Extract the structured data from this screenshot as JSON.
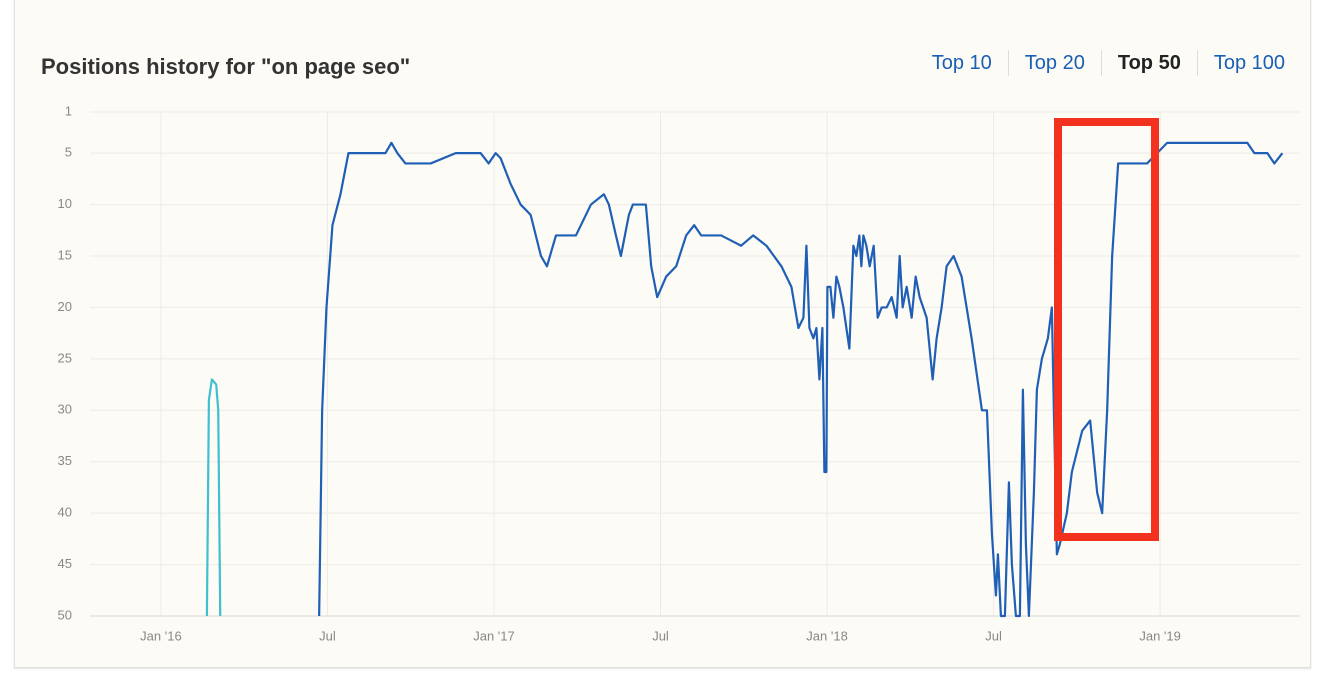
{
  "chart_data": {
    "type": "line",
    "title": "Positions history for \"on page seo\"",
    "range_buttons": [
      {
        "label": "Top 10",
        "selected": false
      },
      {
        "label": "Top 20",
        "selected": false
      },
      {
        "label": "Top 50",
        "selected": true
      },
      {
        "label": "Top 100",
        "selected": false
      }
    ],
    "y_reversed": true,
    "grid": true,
    "ylim": [
      1,
      50
    ],
    "yticks": [
      1,
      5,
      10,
      15,
      20,
      25,
      30,
      35,
      40,
      45,
      50
    ],
    "xlim": [
      2015.787,
      2019.42
    ],
    "xticks": [
      {
        "value": 2016,
        "label": "Jan '16"
      },
      {
        "value": 2016.5,
        "label": "Jul"
      },
      {
        "value": 2017,
        "label": "Jan '17"
      },
      {
        "value": 2017.5,
        "label": "Jul"
      },
      {
        "value": 2018,
        "label": "Jan '18"
      },
      {
        "value": 2018.5,
        "label": "Jul"
      },
      {
        "value": 2019,
        "label": "Jan '19"
      }
    ],
    "series": [
      {
        "color": "#3fbfcf",
        "x": [
          2016.138,
          2016.144,
          2016.153,
          2016.166,
          2016.172,
          2016.178
        ],
        "values": [
          50,
          29,
          27,
          27.5,
          30,
          50
        ]
      },
      {
        "color": "#1f5fb5",
        "x": [
          2016.475,
          2016.484,
          2016.497,
          2016.515,
          2016.539,
          2016.563,
          2016.584,
          2016.674,
          2016.692,
          2016.71,
          2016.734,
          2016.81,
          2016.885,
          2016.96,
          2016.984,
          2017.005,
          2017.02,
          2017.05,
          2017.08,
          2017.11,
          2017.141,
          2017.159,
          2017.186,
          2017.246,
          2017.291,
          2017.33,
          2017.345,
          2017.366,
          2017.381,
          2017.405,
          2017.417,
          2017.456,
          2017.472,
          2017.49,
          2017.517,
          2017.547,
          2017.577,
          2017.601,
          2017.622,
          2017.682,
          2017.712,
          2017.742,
          2017.778,
          2017.818,
          2017.863,
          2017.893,
          2017.914,
          2017.929,
          2017.938,
          2017.947,
          2017.959,
          2017.968,
          2017.977,
          2017.986,
          2017.992,
          2017.998,
          2018.001,
          2018.01,
          2018.019,
          2018.028,
          2018.037,
          2018.049,
          2018.067,
          2018.079,
          2018.088,
          2018.097,
          2018.103,
          2018.109,
          2018.118,
          2018.128,
          2018.14,
          2018.152,
          2018.164,
          2018.179,
          2018.194,
          2018.209,
          2018.218,
          2018.227,
          2018.239,
          2018.254,
          2018.266,
          2018.278,
          2018.299,
          2018.317,
          2018.329,
          2018.344,
          2018.359,
          2018.38,
          2018.404,
          2018.434,
          2018.465,
          2018.48,
          2018.495,
          2018.507,
          2018.513,
          2018.522,
          2018.534,
          2018.546,
          2018.555,
          2018.567,
          2018.579,
          2018.588,
          2018.597,
          2018.606,
          2018.621,
          2018.63,
          2018.645,
          2018.663,
          2018.675,
          2018.681,
          2018.69,
          2018.699,
          2018.72,
          2018.735,
          2018.766,
          2018.79,
          2018.811,
          2018.826,
          2018.841,
          2018.856,
          2018.874,
          2018.961,
          2018.991,
          2019.021,
          2019.262,
          2019.283,
          2019.322,
          2019.343,
          2019.367
        ],
        "values": [
          50,
          30,
          20,
          12,
          9,
          5,
          5,
          5,
          4,
          5,
          6,
          6,
          5,
          5,
          6,
          5,
          5.5,
          8,
          10,
          11,
          15,
          16,
          13,
          13,
          10,
          9,
          10,
          13,
          15,
          11,
          10,
          10,
          16,
          19,
          17,
          16,
          13,
          12,
          13,
          13,
          13.5,
          14,
          13,
          14,
          16,
          18,
          22,
          21,
          14,
          22,
          23,
          22,
          27,
          22,
          36,
          36,
          18,
          18,
          21,
          17,
          18,
          20,
          24,
          14,
          15,
          13,
          16,
          13,
          14,
          16,
          14,
          21,
          20,
          20,
          19,
          21,
          15,
          20,
          18,
          21,
          17,
          19,
          21,
          27,
          23,
          20,
          16,
          15,
          17,
          23,
          30,
          30,
          42,
          48,
          44,
          50,
          50,
          37,
          45,
          50,
          50,
          28,
          43,
          50,
          38,
          28,
          25,
          23,
          20,
          30,
          44,
          43,
          40,
          36,
          32,
          31,
          38,
          40,
          30,
          15,
          6,
          6,
          5,
          4,
          4,
          5,
          5,
          6,
          5
        ]
      }
    ]
  }
}
